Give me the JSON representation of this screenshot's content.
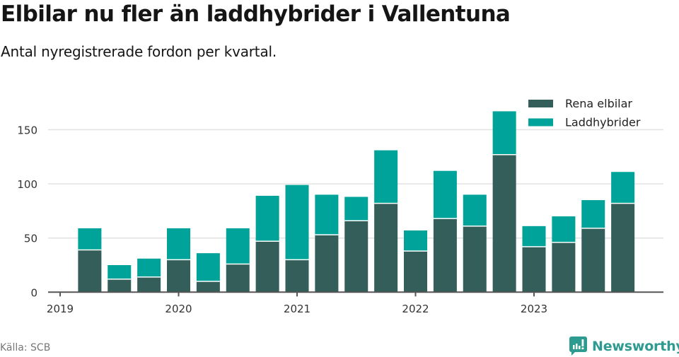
{
  "header": {
    "title": "Elbilar nu fler än laddhybrider i Vallentuna",
    "subtitle": "Antal nyregistrerade fordon per kvartal."
  },
  "footer": {
    "source": "Källa: SCB",
    "brand": "Newsworthy"
  },
  "colors": {
    "rena_elbilar": "#335e5a",
    "laddhybrider": "#00a399",
    "grid": "#e2e2e2",
    "axis": "#555555",
    "brand": "#2d9b8f"
  },
  "legend": [
    {
      "label": "Rena elbilar",
      "color": "#335e5a"
    },
    {
      "label": "Laddhybrider",
      "color": "#00a399"
    }
  ],
  "chart_data": {
    "type": "bar",
    "stacked": true,
    "title": "Elbilar nu fler än laddhybrider i Vallentuna",
    "subtitle": "Antal nyregistrerade fordon per kvartal.",
    "xlabel": "",
    "ylabel": "",
    "ylim": [
      0,
      175
    ],
    "yticks": [
      0,
      50,
      100,
      150
    ],
    "xticks": [
      "2019",
      "2020",
      "2021",
      "2022",
      "2023"
    ],
    "grid": true,
    "legend_position": "top-right",
    "categories": [
      "2019 Q1",
      "2019 Q2",
      "2019 Q3",
      "2019 Q4",
      "2020 Q1",
      "2020 Q2",
      "2020 Q3",
      "2020 Q4",
      "2021 Q1",
      "2021 Q2",
      "2021 Q3",
      "2021 Q4",
      "2022 Q1",
      "2022 Q2",
      "2022 Q3",
      "2022 Q4",
      "2023 Q1",
      "2023 Q2",
      "2023 Q3"
    ],
    "series": [
      {
        "name": "Rena elbilar",
        "values": [
          39,
          12,
          14,
          30,
          10,
          26,
          47,
          30,
          53,
          66,
          82,
          38,
          68,
          61,
          127,
          42,
          46,
          59,
          82
        ]
      },
      {
        "name": "Laddhybrider",
        "values": [
          20,
          13,
          17,
          29,
          26,
          33,
          42,
          69,
          37,
          22,
          49,
          19,
          44,
          29,
          40,
          19,
          24,
          26,
          29
        ]
      }
    ]
  }
}
